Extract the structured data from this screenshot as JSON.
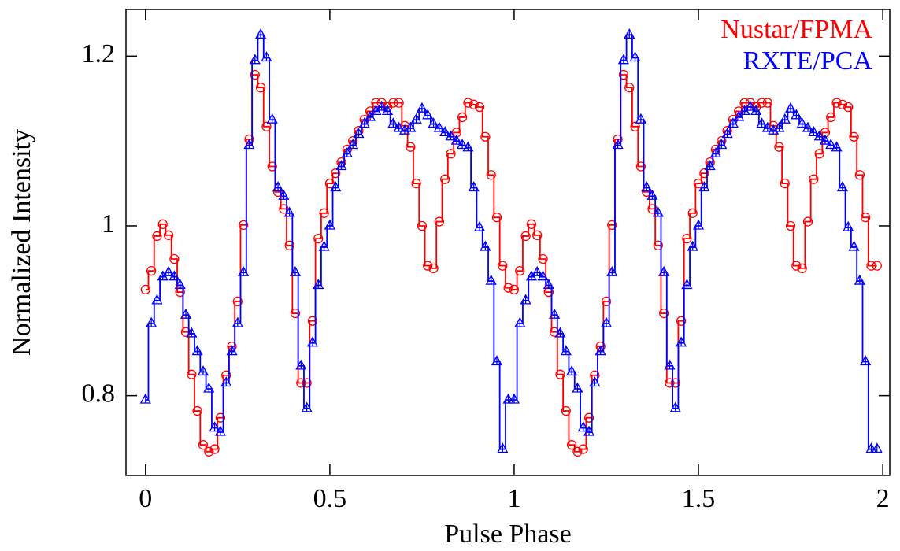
{
  "chart_data": {
    "type": "step",
    "xlabel": "Pulse Phase",
    "ylabel": "Normalized Intensity",
    "xlim": [
      -0.053,
      2.019
    ],
    "ylim": [
      0.706,
      1.255
    ],
    "xticks": [
      0,
      0.5,
      1,
      1.5,
      2
    ],
    "yticks": [
      0.8,
      1,
      1.2
    ],
    "legend": "upper right",
    "x": [
      0,
      0.015625,
      0.03125,
      0.046875,
      0.0625,
      0.078125,
      0.09375,
      0.109375,
      0.125,
      0.140625,
      0.15625,
      0.171875,
      0.1875,
      0.203125,
      0.21875,
      0.234375,
      0.25,
      0.265625,
      0.28125,
      0.296875,
      0.3125,
      0.328125,
      0.34375,
      0.359375,
      0.375,
      0.390625,
      0.40625,
      0.421875,
      0.4375,
      0.453125,
      0.46875,
      0.484375,
      0.5,
      0.515625,
      0.53125,
      0.546875,
      0.5625,
      0.578125,
      0.59375,
      0.609375,
      0.625,
      0.640625,
      0.65625,
      0.671875,
      0.6875,
      0.703125,
      0.71875,
      0.734375,
      0.75,
      0.765625,
      0.78125,
      0.796875,
      0.8125,
      0.828125,
      0.84375,
      0.859375,
      0.875,
      0.890625,
      0.90625,
      0.921875,
      0.9375,
      0.953125,
      0.96875,
      0.984375,
      1,
      1.015625,
      1.03125,
      1.046875,
      1.0625,
      1.078125,
      1.09375,
      1.109375,
      1.125,
      1.140625,
      1.15625,
      1.171875,
      1.1875,
      1.203125,
      1.21875,
      1.234375,
      1.25,
      1.265625,
      1.28125,
      1.296875,
      1.3125,
      1.328125,
      1.34375,
      1.359375,
      1.375,
      1.390625,
      1.40625,
      1.421875,
      1.4375,
      1.453125,
      1.46875,
      1.484375,
      1.5,
      1.515625,
      1.53125,
      1.546875,
      1.5625,
      1.578125,
      1.59375,
      1.609375,
      1.625,
      1.640625,
      1.65625,
      1.671875,
      1.6875,
      1.703125,
      1.71875,
      1.734375,
      1.75,
      1.765625,
      1.78125,
      1.796875,
      1.8125,
      1.828125,
      1.84375,
      1.859375,
      1.875,
      1.890625,
      1.90625,
      1.921875,
      1.9375,
      1.953125,
      1.96875,
      1.984375
    ],
    "series": [
      {
        "name": "Nustar/FPMA",
        "color": "#ff0000",
        "marker": "circle",
        "values": [
          0.925,
          0.947,
          0.988,
          1.002,
          0.989,
          0.961,
          0.922,
          0.875,
          0.825,
          0.782,
          0.742,
          0.734,
          0.737,
          0.774,
          0.824,
          0.858,
          0.911,
          1.001,
          1.102,
          1.178,
          1.163,
          1.117,
          1.07,
          1.04,
          1.02,
          0.977,
          0.897,
          0.815,
          0.815,
          0.888,
          0.985,
          1.015,
          1.05,
          1.062,
          1.075,
          1.09,
          1.1,
          1.112,
          1.125,
          1.135,
          1.145,
          1.145,
          1.14,
          1.145,
          1.145,
          1.118,
          1.093,
          1.05,
          1.0,
          0.953,
          0.95,
          1.005,
          1.055,
          1.085,
          1.11,
          1.128,
          1.145,
          1.143,
          1.14,
          1.105,
          1.06,
          1.01,
          0.953,
          0.927,
          0.925,
          0.947,
          0.988,
          1.002,
          0.989,
          0.961,
          0.922,
          0.875,
          0.825,
          0.782,
          0.742,
          0.734,
          0.737,
          0.774,
          0.824,
          0.858,
          0.911,
          1.001,
          1.102,
          1.178,
          1.163,
          1.117,
          1.07,
          1.04,
          1.02,
          0.977,
          0.897,
          0.815,
          0.815,
          0.888,
          0.985,
          1.015,
          1.05,
          1.062,
          1.075,
          1.09,
          1.1,
          1.112,
          1.125,
          1.135,
          1.145,
          1.145,
          1.14,
          1.145,
          1.145,
          1.118,
          1.093,
          1.05,
          1.0,
          0.953,
          0.95,
          1.005,
          1.055,
          1.085,
          1.11,
          1.128,
          1.145,
          1.143,
          1.14,
          1.105,
          1.06,
          1.01,
          0.953,
          0.953
        ]
      },
      {
        "name": "RXTE/PCA",
        "color": "#0000ff",
        "marker": "triangle",
        "values": [
          0.795,
          0.885,
          0.912,
          0.94,
          0.945,
          0.94,
          0.93,
          0.895,
          0.873,
          0.852,
          0.828,
          0.808,
          0.762,
          0.757,
          0.815,
          0.852,
          0.885,
          0.945,
          1.095,
          1.195,
          1.225,
          1.198,
          1.125,
          1.045,
          1.035,
          1.015,
          0.945,
          0.835,
          0.785,
          0.862,
          0.93,
          0.975,
          1.0,
          1.045,
          1.07,
          1.085,
          1.095,
          1.108,
          1.12,
          1.128,
          1.135,
          1.14,
          1.135,
          1.12,
          1.115,
          1.112,
          1.115,
          1.125,
          1.138,
          1.13,
          1.12,
          1.115,
          1.11,
          1.105,
          1.1,
          1.095,
          1.092,
          1.045,
          0.998,
          0.975,
          0.935,
          0.84,
          0.737,
          0.795,
          0.795,
          0.885,
          0.912,
          0.94,
          0.945,
          0.94,
          0.93,
          0.895,
          0.873,
          0.852,
          0.828,
          0.808,
          0.762,
          0.757,
          0.815,
          0.852,
          0.885,
          0.945,
          1.095,
          1.195,
          1.225,
          1.198,
          1.125,
          1.045,
          1.035,
          1.015,
          0.945,
          0.835,
          0.785,
          0.862,
          0.93,
          0.975,
          1.0,
          1.045,
          1.07,
          1.085,
          1.095,
          1.108,
          1.12,
          1.128,
          1.135,
          1.14,
          1.135,
          1.12,
          1.115,
          1.112,
          1.115,
          1.125,
          1.138,
          1.13,
          1.12,
          1.115,
          1.11,
          1.105,
          1.1,
          1.095,
          1.092,
          1.045,
          0.998,
          0.975,
          0.935,
          0.84,
          0.737,
          0.737
        ]
      }
    ]
  }
}
